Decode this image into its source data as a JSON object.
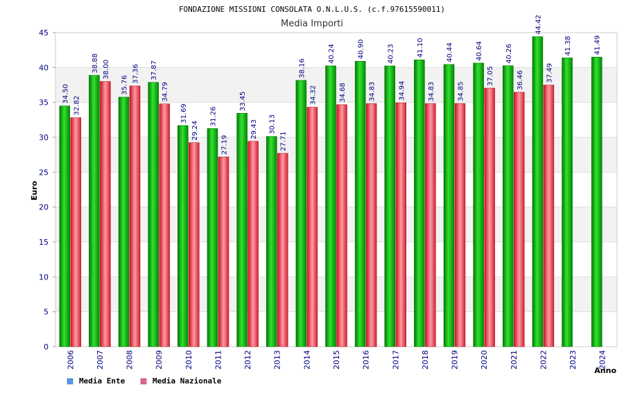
{
  "chart_data": {
    "type": "bar",
    "title": "FONDAZIONE MISSIONI CONSOLATA O.N.L.U.S. (c.f.97615590011)",
    "subtitle": "Media Importi",
    "xlabel": "Anno",
    "ylabel": "Euro",
    "ylim": [
      0,
      45
    ],
    "yticks": [
      0,
      5,
      10,
      15,
      20,
      25,
      30,
      35,
      40,
      45
    ],
    "categories": [
      "2006",
      "2007",
      "2008",
      "2009",
      "2010",
      "2011",
      "2012",
      "2013",
      "2014",
      "2015",
      "2016",
      "2017",
      "2018",
      "2019",
      "2020",
      "2021",
      "2022",
      "2023",
      "2024"
    ],
    "series": [
      {
        "name": "Media Ente",
        "color": "#00aa00",
        "values": [
          34.5,
          38.88,
          35.76,
          37.87,
          31.69,
          31.26,
          33.45,
          30.13,
          38.16,
          40.24,
          40.9,
          40.23,
          41.1,
          40.44,
          40.64,
          40.26,
          44.42,
          41.38,
          41.49
        ],
        "labels": [
          "34.50",
          "38.88",
          "35.76",
          "37.87",
          "31.69",
          "31.26",
          "33.45",
          "30.13",
          "38.16",
          "40.24",
          "40.90",
          "40.23",
          "41.10",
          "40.44",
          "40.64",
          "40.26",
          "44.42",
          "41.38",
          "41.49"
        ]
      },
      {
        "name": "Media Nazionale",
        "color": "#dd2233",
        "values": [
          32.82,
          38.0,
          37.36,
          34.79,
          29.24,
          27.19,
          29.43,
          27.71,
          34.32,
          34.68,
          34.83,
          34.94,
          34.83,
          34.85,
          37.05,
          36.46,
          37.49,
          null,
          null
        ],
        "labels": [
          "32.82",
          "38.00",
          "37.36",
          "34.79",
          "29.24",
          "27.19",
          "29.43",
          "27.71",
          "34.32",
          "34.68",
          "34.83",
          "34.94",
          "34.83",
          "34.85",
          "37.05",
          "36.46",
          "37.49",
          null,
          null
        ]
      }
    ],
    "legend": [
      {
        "label": "Media Ente",
        "color": "#5599ee"
      },
      {
        "label": "Media Nazionale",
        "color": "#dd6699"
      }
    ],
    "grid": true,
    "legend_position": "bottom-left"
  }
}
